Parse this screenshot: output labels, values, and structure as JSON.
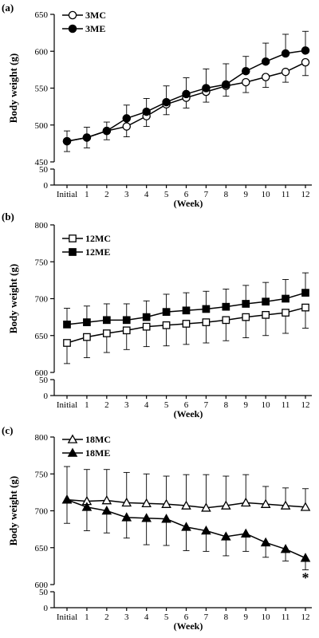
{
  "chart_data": [
    {
      "panel_label": "(a)",
      "type": "line",
      "ylabel": "Body weight (g)",
      "xlabel": "(Week)",
      "categories": [
        "Initial",
        "1",
        "2",
        "3",
        "4",
        "5",
        "6",
        "7",
        "8",
        "9",
        "10",
        "11",
        "12"
      ],
      "y_main_range": [
        450,
        650
      ],
      "y_main_ticks": [
        "450",
        "500",
        "550",
        "600",
        "650"
      ],
      "y_low_ticks": [
        "0",
        "50"
      ],
      "series": [
        {
          "name": "3MC",
          "marker": "circle-open",
          "values": [
            478,
            483,
            492,
            498,
            512,
            528,
            537,
            545,
            553,
            558,
            565,
            572,
            585
          ],
          "err": [
            14,
            14,
            12,
            14,
            14,
            14,
            14,
            14,
            14,
            14,
            14,
            14,
            18
          ]
        },
        {
          "name": "3ME",
          "marker": "circle-filled",
          "values": [
            478,
            483,
            492,
            509,
            518,
            531,
            542,
            550,
            555,
            573,
            586,
            597,
            601
          ],
          "err": [
            14,
            14,
            12,
            18,
            18,
            22,
            22,
            26,
            28,
            20,
            25,
            26,
            26
          ]
        }
      ],
      "annotations": []
    },
    {
      "panel_label": "(b)",
      "type": "line",
      "ylabel": "Body weight (g)",
      "xlabel": "(Week)",
      "categories": [
        "Initial",
        "1",
        "2",
        "3",
        "4",
        "5",
        "6",
        "7",
        "8",
        "9",
        "10",
        "11",
        "12"
      ],
      "y_main_range": [
        600,
        800
      ],
      "y_main_ticks": [
        "600",
        "650",
        "700",
        "750",
        "800"
      ],
      "y_low_ticks": [
        "0",
        "50"
      ],
      "series": [
        {
          "name": "12MC",
          "marker": "square-open",
          "values": [
            640,
            648,
            653,
            657,
            662,
            664,
            666,
            668,
            671,
            675,
            678,
            681,
            688
          ],
          "err": [
            28,
            28,
            26,
            26,
            27,
            28,
            28,
            28,
            28,
            28,
            28,
            28,
            28
          ]
        },
        {
          "name": "12ME",
          "marker": "square-filled",
          "values": [
            665,
            668,
            671,
            671,
            675,
            682,
            684,
            686,
            689,
            693,
            696,
            700,
            708
          ],
          "err": [
            22,
            22,
            22,
            22,
            22,
            24,
            24,
            24,
            24,
            25,
            26,
            26,
            27
          ]
        }
      ],
      "annotations": []
    },
    {
      "panel_label": "(c)",
      "type": "line",
      "ylabel": "Body weight (g)",
      "xlabel": "(Week)",
      "categories": [
        "Initial",
        "1",
        "2",
        "3",
        "4",
        "5",
        "6",
        "7",
        "8",
        "9",
        "10",
        "11",
        "12"
      ],
      "y_main_range": [
        600,
        800
      ],
      "y_main_ticks": [
        "600",
        "650",
        "700",
        "750",
        "800"
      ],
      "y_low_ticks": [
        "0",
        "50"
      ],
      "series": [
        {
          "name": "18MC",
          "marker": "triangle-open",
          "values": [
            715,
            713,
            714,
            711,
            710,
            709,
            707,
            704,
            707,
            711,
            709,
            707,
            705
          ],
          "err": [
            45,
            43,
            42,
            41,
            40,
            38,
            42,
            45,
            40,
            38,
            24,
            24,
            25
          ]
        },
        {
          "name": "18ME",
          "marker": "triangle-filled",
          "values": [
            715,
            705,
            700,
            691,
            690,
            689,
            678,
            673,
            665,
            669,
            657,
            648,
            636
          ],
          "err": [
            32,
            32,
            30,
            28,
            36,
            36,
            32,
            28,
            26,
            24,
            20,
            16,
            16
          ]
        }
      ],
      "annotations": [
        {
          "text": "*",
          "category": "12"
        }
      ]
    }
  ]
}
